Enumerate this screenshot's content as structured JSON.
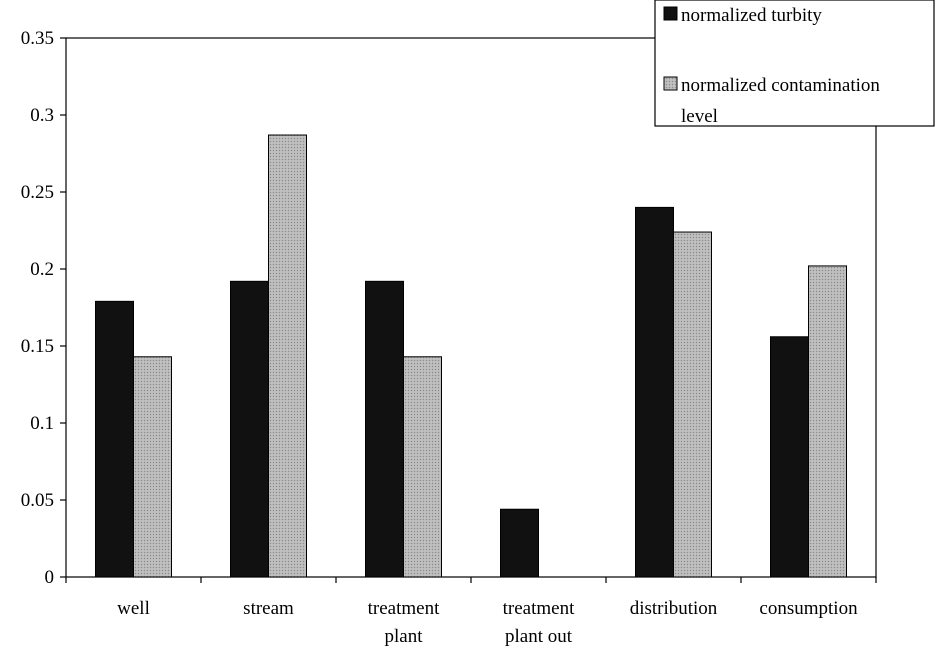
{
  "chart_data": {
    "type": "bar",
    "title": "",
    "xlabel": "",
    "ylabel": "",
    "categories": [
      [
        "well"
      ],
      [
        "stream"
      ],
      [
        "treatment",
        "plant"
      ],
      [
        "treatment",
        "plant out"
      ],
      [
        "distribution"
      ],
      [
        "consumption"
      ]
    ],
    "series": [
      {
        "name": "normalized turbity",
        "color": "#111111",
        "values": [
          0.179,
          0.192,
          0.192,
          0.044,
          0.24,
          0.156
        ]
      },
      {
        "name": "normalized contamination level",
        "name_lines": [
          "normalized contamination",
          "level"
        ],
        "color": "#aaaaaa",
        "pattern": "dotted-gray",
        "values": [
          0.143,
          0.287,
          0.143,
          0,
          0.224,
          0.202
        ]
      }
    ],
    "ylim": [
      0,
      0.35
    ],
    "yticks": [
      "0",
      "0.05",
      "0.1",
      "0.15",
      "0.2",
      "0.25",
      "0.3",
      "0.35"
    ],
    "grid": false,
    "legend_position": "top-right"
  }
}
